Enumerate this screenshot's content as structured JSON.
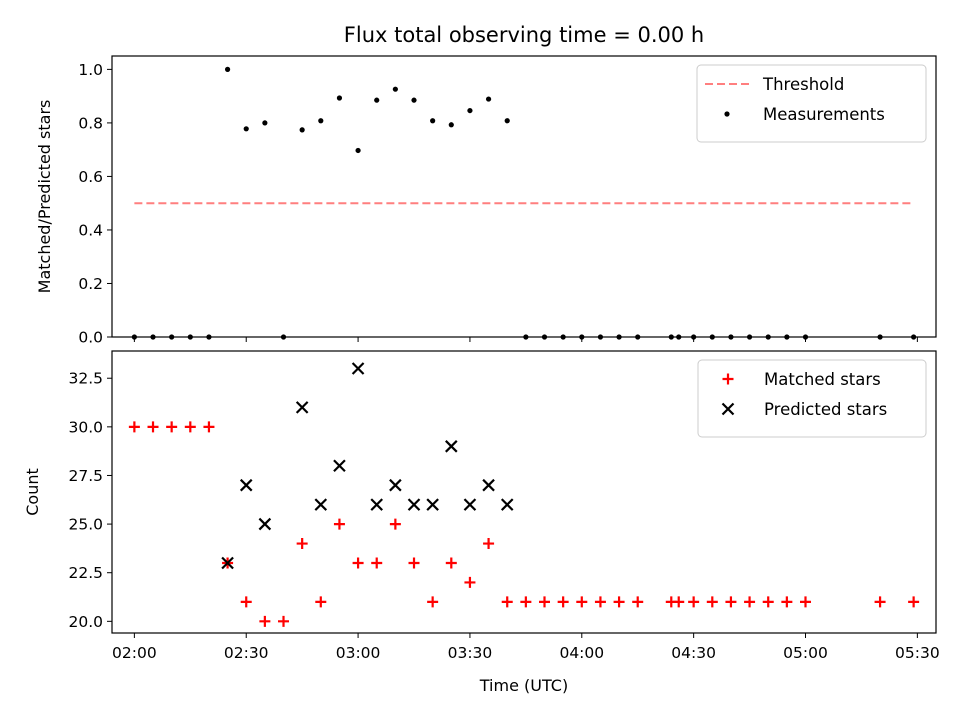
{
  "chart_data": [
    {
      "type": "scatter",
      "title": "Flux total observing time = 0.00 h",
      "xlabel": "",
      "ylabel": "Matched/Predicted stars",
      "ylim": [
        0,
        1.05
      ],
      "yticks": [
        0.0,
        0.2,
        0.4,
        0.6,
        0.8,
        1.0
      ],
      "ytick_labels": [
        "0.0",
        "0.2",
        "0.4",
        "0.6",
        "0.8",
        "1.0"
      ],
      "grid": false,
      "legend_position": "top-right",
      "series": [
        {
          "name": "Threshold",
          "kind": "dashed-line",
          "color": "#ff7f7f",
          "x": [
            "02:00",
            "05:29"
          ],
          "y": [
            0.5,
            0.5
          ]
        },
        {
          "name": "Measurements",
          "kind": "dot",
          "color": "#000000",
          "x": [
            "02:00",
            "02:05",
            "02:10",
            "02:15",
            "02:20",
            "02:25",
            "02:30",
            "02:35",
            "02:40",
            "02:45",
            "02:50",
            "02:55",
            "03:00",
            "03:05",
            "03:10",
            "03:15",
            "03:20",
            "03:25",
            "03:30",
            "03:35",
            "03:40",
            "03:45",
            "03:50",
            "03:55",
            "04:00",
            "04:05",
            "04:10",
            "04:15",
            "04:24",
            "04:26",
            "04:30",
            "04:35",
            "04:40",
            "04:45",
            "04:50",
            "04:55",
            "05:00",
            "05:20",
            "05:29"
          ],
          "y": [
            0,
            0,
            0,
            0,
            0,
            1.0,
            0.778,
            0.8,
            0,
            0.774,
            0.808,
            0.893,
            0.697,
            0.885,
            0.926,
            0.885,
            0.808,
            0.793,
            0.846,
            0.889,
            0.808,
            0,
            0,
            0,
            0,
            0,
            0,
            0,
            0,
            0,
            0,
            0,
            0,
            0,
            0,
            0,
            0,
            0,
            0
          ]
        }
      ]
    },
    {
      "type": "scatter",
      "title": "",
      "xlabel": "Time (UTC)",
      "ylabel": "Count",
      "ylim": [
        19.4,
        33.9
      ],
      "yticks": [
        20.0,
        22.5,
        25.0,
        27.5,
        30.0,
        32.5
      ],
      "ytick_labels": [
        "20.0",
        "22.5",
        "25.0",
        "27.5",
        "30.0",
        "32.5"
      ],
      "xticks": [
        "02:00",
        "02:30",
        "03:00",
        "03:30",
        "04:00",
        "04:30",
        "05:00",
        "05:30"
      ],
      "grid": false,
      "legend_position": "top-right",
      "series": [
        {
          "name": "Matched stars",
          "kind": "plus",
          "color": "#ff0000",
          "x": [
            "02:00",
            "02:05",
            "02:10",
            "02:15",
            "02:20",
            "02:25",
            "02:30",
            "02:35",
            "02:40",
            "02:45",
            "02:50",
            "02:55",
            "03:00",
            "03:05",
            "03:10",
            "03:15",
            "03:20",
            "03:25",
            "03:30",
            "03:35",
            "03:40",
            "03:45",
            "03:50",
            "03:55",
            "04:00",
            "04:05",
            "04:10",
            "04:15",
            "04:24",
            "04:26",
            "04:30",
            "04:35",
            "04:40",
            "04:45",
            "04:50",
            "04:55",
            "05:00",
            "05:20",
            "05:29"
          ],
          "y": [
            30,
            30,
            30,
            30,
            30,
            23,
            21,
            20,
            20,
            24,
            21,
            25,
            23,
            23,
            25,
            23,
            21,
            23,
            22,
            24,
            21,
            21,
            21,
            21,
            21,
            21,
            21,
            21,
            21,
            21,
            21,
            21,
            21,
            21,
            21,
            21,
            21,
            21,
            21
          ]
        },
        {
          "name": "Predicted stars",
          "kind": "x",
          "color": "#000000",
          "x": [
            "02:25",
            "02:30",
            "02:35",
            "02:45",
            "02:50",
            "02:55",
            "03:00",
            "03:05",
            "03:10",
            "03:15",
            "03:20",
            "03:25",
            "03:30",
            "03:35",
            "03:40"
          ],
          "y": [
            23,
            27,
            25,
            31,
            26,
            28,
            33,
            26,
            27,
            26,
            26,
            29,
            26,
            27,
            26
          ]
        }
      ]
    }
  ]
}
